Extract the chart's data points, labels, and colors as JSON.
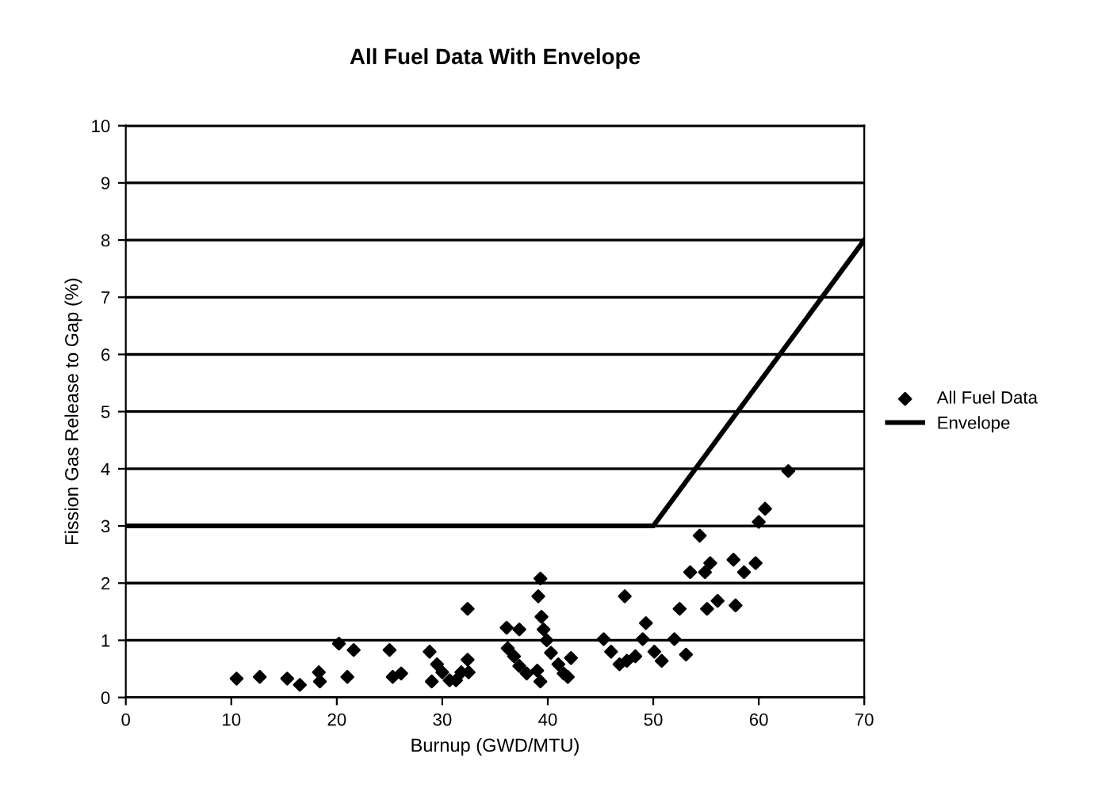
{
  "chart_data": {
    "type": "scatter",
    "title": "All Fuel Data With Envelope",
    "xlabel": "Burnup (GWD/MTU)",
    "ylabel": "Fission Gas Release to Gap (%)",
    "xlim": [
      0,
      70
    ],
    "xticks": [
      0,
      10,
      20,
      30,
      40,
      50,
      60,
      70
    ],
    "ylim": [
      0,
      10
    ],
    "yticks": [
      0,
      1,
      2,
      3,
      4,
      5,
      6,
      7,
      8,
      9,
      10
    ],
    "grid": "y",
    "legend": "right",
    "series": [
      {
        "name": "All Fuel Data",
        "color": "#000000",
        "marker": "diamond",
        "x": [
          10.5,
          12.7,
          15.3,
          16.5,
          18.3,
          18.4,
          20.2,
          21.6,
          21.0,
          25.0,
          25.3,
          26.1,
          28.8,
          29.5,
          30.0,
          30.7,
          31.8,
          32.4,
          32.5,
          32.4,
          29.0,
          31.3,
          36.1,
          37.3,
          36.2,
          36.8,
          37.3,
          38.0,
          39.0,
          39.3,
          39.1,
          39.4,
          39.6,
          39.9,
          40.3,
          41.0,
          41.9,
          42.2,
          39.3,
          41.5,
          47.3,
          45.3,
          46.0,
          46.8,
          47.5,
          48.3,
          49.0,
          49.3,
          50.1,
          50.8,
          52.0,
          52.5,
          53.1,
          54.4,
          53.5,
          54.9,
          55.4,
          55.1,
          56.1,
          57.8,
          58.6,
          59.7,
          60.0,
          60.6,
          62.8,
          57.6
        ],
        "values": [
          0.33,
          0.36,
          0.33,
          0.22,
          0.44,
          0.28,
          0.94,
          0.83,
          0.36,
          0.83,
          0.36,
          0.42,
          0.8,
          0.58,
          0.44,
          0.3,
          0.44,
          0.66,
          0.44,
          1.55,
          0.28,
          0.3,
          1.22,
          1.19,
          0.86,
          0.72,
          0.55,
          0.42,
          0.47,
          2.08,
          1.77,
          1.41,
          1.19,
          1.0,
          0.78,
          0.58,
          0.36,
          0.69,
          0.28,
          0.42,
          1.77,
          1.02,
          0.8,
          0.58,
          0.64,
          0.72,
          1.02,
          1.3,
          0.8,
          0.64,
          1.02,
          1.55,
          0.75,
          2.83,
          2.19,
          2.19,
          2.35,
          1.55,
          1.69,
          1.61,
          2.19,
          2.35,
          3.07,
          3.3,
          3.96,
          2.41
        ]
      },
      {
        "name": "Envelope",
        "type": "line",
        "color": "#000000",
        "line_style": "solid",
        "x": [
          0,
          50,
          70
        ],
        "values": [
          3,
          3,
          8
        ]
      }
    ]
  }
}
